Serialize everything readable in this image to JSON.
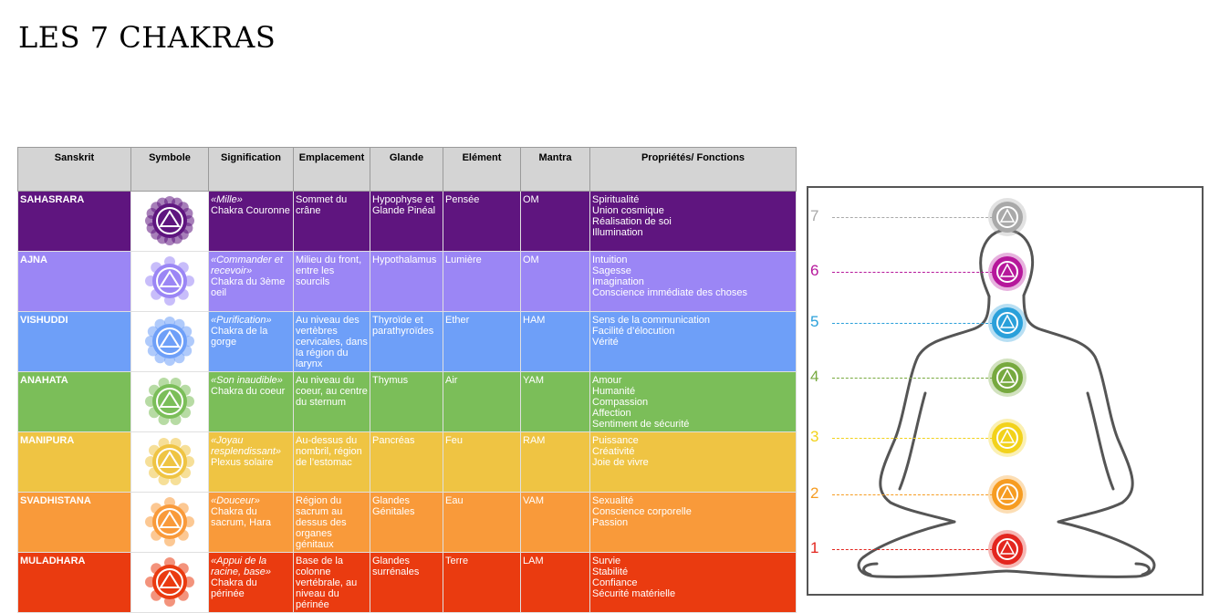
{
  "title": "LES 7 CHAKRAS",
  "headers": [
    "Sanskrit",
    "Symbole",
    "Signification",
    "Emplacement",
    "Glande",
    "Elément",
    "Mantra",
    "Propriétés/ Fonctions"
  ],
  "rows": [
    {
      "sanskrit": "SAHASRARA",
      "color": "#5f157f",
      "sign_italic": "«Mille»",
      "sign_text": "Chakra Couronne",
      "emplacement": "Sommet du crâne",
      "glande": "Hypophyse et Glande Pinéal",
      "element": "Pensée",
      "mantra": "OM",
      "props": [
        "Spiritualité",
        "Union cosmique",
        "Réalisation de soi",
        "Illumination"
      ]
    },
    {
      "sanskrit": "AJNA",
      "color": "#9b86f5",
      "sign_italic": "«Commander et recevoir»",
      "sign_text": "Chakra du 3ème oeil",
      "emplacement": "Milieu du front, entre les sourcils",
      "glande": "Hypothalamus",
      "element": "Lumière",
      "mantra": "OM",
      "props": [
        "Intuition",
        "Sagesse",
        "Imagination",
        "Conscience immédiate des choses"
      ]
    },
    {
      "sanskrit": "VISHUDDI",
      "color": "#6e9ff8",
      "sign_italic": "«Purification»",
      "sign_text": "Chakra de la gorge",
      "emplacement": "Au niveau des vertèbres cervicales, dans la région du larynx",
      "glande": "Thyroïde et parathyroïdes",
      "element": "Ether",
      "mantra": "HAM",
      "props": [
        "Sens de la communication",
        "Facilité d’élocution",
        "Vérité"
      ]
    },
    {
      "sanskrit": "ANAHATA",
      "color": "#7bbe59",
      "sign_italic": "«Son inaudible»",
      "sign_text": "Chakra du coeur",
      "emplacement": "Au niveau du coeur, au centre du sternum",
      "glande": "Thymus",
      "element": "Air",
      "mantra": "YAM",
      "props": [
        "Amour",
        "Humanité",
        "Compassion",
        "Affection",
        "Sentiment de sécurité"
      ]
    },
    {
      "sanskrit": "MANIPURA",
      "color": "#efc443",
      "sign_italic": "«Joyau resplendissant»",
      "sign_text": "Plexus solaire",
      "emplacement": "Au-dessus du nombril, région de l’estomac",
      "glande": "Pancréas",
      "element": "Feu",
      "mantra": "RAM",
      "props": [
        "Puissance",
        "Créativité",
        "Joie de vivre"
      ]
    },
    {
      "sanskrit": "SVADHISTANA",
      "color": "#f99a3a",
      "sign_italic": "«Douceur»",
      "sign_text": "Chakra du sacrum, Hara",
      "emplacement": "Région du sacrum au dessus des organes génitaux",
      "glande": "Glandes Génitales",
      "element": "Eau",
      "mantra": "VAM",
      "props": [
        "Sexualité",
        "Conscience corporelle",
        "Passion"
      ]
    },
    {
      "sanskrit": "MULADHARA",
      "color": "#ea3b10",
      "sign_italic": "«Appui de la racine, base»",
      "sign_text": "Chakra du périnée",
      "emplacement": "Base de la colonne vertébrale, au niveau du périnée",
      "glande": "Glandes surrénales",
      "element": "Terre",
      "mantra": "LAM",
      "props": [
        "Survie",
        "Stabilité",
        "Confiance",
        "Sécurité matérielle"
      ]
    }
  ],
  "figure": {
    "numbers": [
      "7",
      "6",
      "5",
      "4",
      "3",
      "2",
      "1"
    ],
    "colors": [
      "#a9a9a9",
      "#b6179b",
      "#2aa0da",
      "#77a93f",
      "#f2d21b",
      "#f69c21",
      "#e3261f"
    ]
  }
}
